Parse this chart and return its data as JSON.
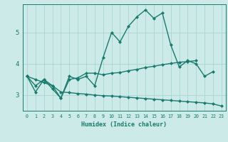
{
  "xlabel": "Humidex (Indice chaleur)",
  "ylabel": "",
  "xlim": [
    -0.5,
    23.5
  ],
  "ylim": [
    2.5,
    5.9
  ],
  "background_color": "#cceae7",
  "grid_color": "#aad4d0",
  "line_color": "#1a7a6e",
  "x": [
    0,
    1,
    2,
    3,
    4,
    5,
    6,
    7,
    8,
    9,
    10,
    11,
    12,
    13,
    14,
    15,
    16,
    17,
    18,
    19,
    20,
    21,
    22,
    23
  ],
  "line1": [
    3.6,
    3.1,
    3.5,
    3.2,
    2.9,
    3.6,
    3.5,
    3.6,
    3.3,
    4.2,
    5.0,
    4.7,
    5.2,
    5.5,
    5.72,
    5.45,
    5.62,
    4.6,
    3.9,
    4.1,
    4.0,
    3.6,
    3.75,
    null
  ],
  "line2": [
    3.6,
    3.3,
    3.5,
    3.3,
    2.9,
    3.5,
    3.55,
    3.7,
    3.7,
    3.65,
    3.7,
    3.72,
    3.78,
    3.82,
    3.88,
    3.92,
    3.97,
    4.01,
    4.05,
    4.07,
    4.1,
    null,
    null,
    null
  ],
  "line3": [
    3.6,
    3.5,
    3.4,
    3.3,
    3.1,
    3.08,
    3.05,
    3.03,
    3.0,
    2.98,
    2.97,
    2.95,
    2.93,
    2.91,
    2.89,
    2.87,
    2.85,
    2.83,
    2.81,
    2.79,
    2.77,
    2.75,
    2.72,
    2.65
  ],
  "xtick_labels": [
    "0",
    "1",
    "2",
    "3",
    "4",
    "5",
    "6",
    "7",
    "8",
    "9",
    "10",
    "11",
    "12",
    "13",
    "14",
    "15",
    "16",
    "17",
    "18",
    "19",
    "20",
    "21",
    "22",
    "23"
  ],
  "ytick_labels": [
    "3",
    "4",
    "5"
  ],
  "ytick_values": [
    3,
    4,
    5
  ],
  "marker_size": 2.5,
  "line_width": 1.0
}
